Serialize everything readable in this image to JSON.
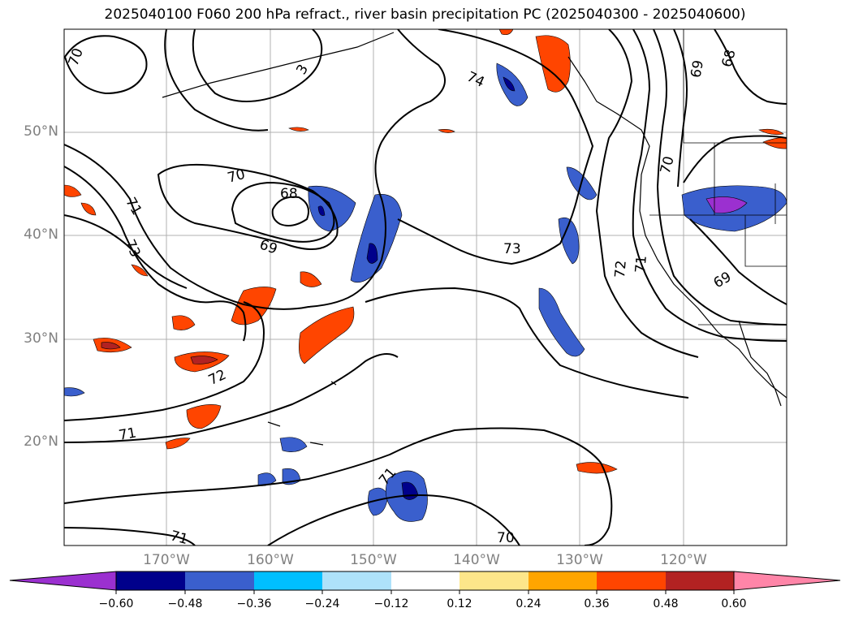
{
  "title": "2025040100 F060 200 hPa refract., river basin precipitation PC (2025040300 - 2025040600)",
  "map": {
    "lat_labels": [
      "50°N",
      "40°N",
      "30°N",
      "20°N"
    ],
    "lon_labels": [
      "170°W",
      "160°W",
      "150°W",
      "140°W",
      "130°W",
      "120°W"
    ],
    "contour_labels": [
      "70",
      "3",
      "74",
      "69",
      "68",
      "70",
      "68",
      "71",
      "73",
      "69",
      "70",
      "73",
      "72",
      "71",
      "69",
      "72",
      "71",
      "71",
      "70",
      "71"
    ],
    "contour_color": "#000000",
    "gridline_color": "#b0b0b0"
  },
  "colorbar": {
    "ticks": [
      "−0.60",
      "−0.48",
      "−0.36",
      "−0.24",
      "−0.12",
      "0.12",
      "0.24",
      "0.36",
      "0.48",
      "0.60"
    ],
    "colors": [
      "#9b30d0",
      "#00008b",
      "#3a5fcd",
      "#00bfff",
      "#aee2fa",
      "#ffffff",
      "#fde68a",
      "#ffa500",
      "#ff4500",
      "#b22222",
      "#ff85a8"
    ]
  }
}
